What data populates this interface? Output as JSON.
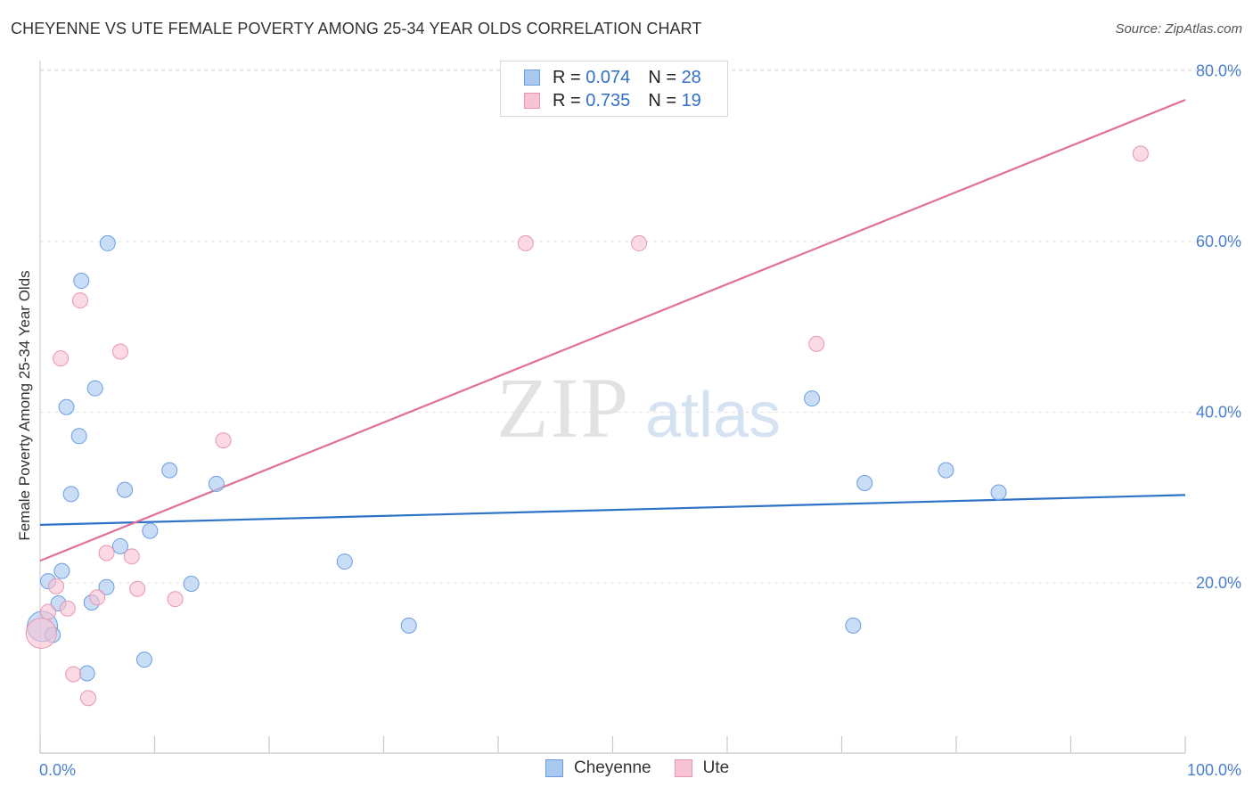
{
  "title": "CHEYENNE VS UTE FEMALE POVERTY AMONG 25-34 YEAR OLDS CORRELATION CHART",
  "source": "Source: ZipAtlas.com",
  "watermark": {
    "zip": "ZIP",
    "atlas": "atlas"
  },
  "legend": {
    "rows": [
      {
        "r_label": "R =",
        "r_value": "0.074",
        "n_label": "N =",
        "n_value": "28",
        "color": "#a9c8f0",
        "border": "#6a9ee0"
      },
      {
        "r_label": "R =",
        "r_value": "0.735",
        "n_label": "N =",
        "n_value": "19",
        "color": "#f8c4d4",
        "border": "#e896b0"
      }
    ]
  },
  "bottom_legend": [
    {
      "label": "Cheyenne",
      "color": "#a9c8f0",
      "border": "#6a9ee0"
    },
    {
      "label": "Ute",
      "color": "#f8c4d4",
      "border": "#e896b0"
    }
  ],
  "chart_data": {
    "type": "scatter",
    "title": "CHEYENNE VS UTE FEMALE POVERTY AMONG 25-34 YEAR OLDS CORRELATION CHART",
    "xlabel": "",
    "ylabel": "Female Poverty Among 25-34 Year Olds",
    "xlim": [
      0,
      100
    ],
    "ylim": [
      0,
      85
    ],
    "x_tick_labels": [
      "0.0%",
      "100.0%"
    ],
    "y_ticks": [
      20,
      40,
      60,
      80
    ],
    "y_tick_labels": [
      "20.0%",
      "40.0%",
      "60.0%",
      "80.0%"
    ],
    "grid": true,
    "legend_placement": "top-center",
    "series": [
      {
        "name": "Cheyenne",
        "color": "#a9c8f0",
        "stroke": "#6a9ee0",
        "trend_color": "#2e72c8",
        "trend": {
          "x": [
            0,
            100
          ],
          "y": [
            26.8,
            30.3
          ]
        },
        "points": [
          {
            "x": 0.2,
            "y": 14.9,
            "big": true
          },
          {
            "x": 0.7,
            "y": 20.2
          },
          {
            "x": 1.1,
            "y": 13.9
          },
          {
            "x": 1.6,
            "y": 17.6
          },
          {
            "x": 1.9,
            "y": 21.4
          },
          {
            "x": 2.3,
            "y": 40.6
          },
          {
            "x": 2.7,
            "y": 30.4
          },
          {
            "x": 3.4,
            "y": 37.2
          },
          {
            "x": 3.6,
            "y": 55.4
          },
          {
            "x": 4.1,
            "y": 9.4
          },
          {
            "x": 4.5,
            "y": 17.7
          },
          {
            "x": 4.8,
            "y": 42.8
          },
          {
            "x": 5.8,
            "y": 19.5
          },
          {
            "x": 5.9,
            "y": 59.8
          },
          {
            "x": 7.0,
            "y": 24.3
          },
          {
            "x": 7.4,
            "y": 30.9
          },
          {
            "x": 9.1,
            "y": 11.0
          },
          {
            "x": 9.6,
            "y": 26.1
          },
          {
            "x": 11.3,
            "y": 33.2
          },
          {
            "x": 13.2,
            "y": 19.9
          },
          {
            "x": 15.4,
            "y": 31.6
          },
          {
            "x": 26.6,
            "y": 22.5
          },
          {
            "x": 32.2,
            "y": 15.0
          },
          {
            "x": 67.4,
            "y": 41.6
          },
          {
            "x": 71.0,
            "y": 15.0
          },
          {
            "x": 72.0,
            "y": 31.7
          },
          {
            "x": 79.1,
            "y": 33.2
          },
          {
            "x": 83.7,
            "y": 30.6
          }
        ]
      },
      {
        "name": "Ute",
        "color": "#f8c4d4",
        "stroke": "#e896b0",
        "trend_color": "#e07095",
        "trend": {
          "x": [
            0,
            100
          ],
          "y": [
            22.6,
            76.6
          ]
        },
        "points": [
          {
            "x": 0.1,
            "y": 14.1,
            "big": true
          },
          {
            "x": 0.7,
            "y": 16.6
          },
          {
            "x": 1.4,
            "y": 19.6
          },
          {
            "x": 1.8,
            "y": 46.3
          },
          {
            "x": 2.4,
            "y": 17.0
          },
          {
            "x": 2.9,
            "y": 9.3
          },
          {
            "x": 3.5,
            "y": 53.1
          },
          {
            "x": 4.2,
            "y": 6.5
          },
          {
            "x": 5.0,
            "y": 18.3
          },
          {
            "x": 5.8,
            "y": 23.5
          },
          {
            "x": 7.0,
            "y": 47.1
          },
          {
            "x": 8.0,
            "y": 23.1
          },
          {
            "x": 8.5,
            "y": 19.3
          },
          {
            "x": 11.8,
            "y": 18.1
          },
          {
            "x": 16.0,
            "y": 36.7
          },
          {
            "x": 42.4,
            "y": 59.8
          },
          {
            "x": 52.3,
            "y": 59.8
          },
          {
            "x": 67.8,
            "y": 48.0
          },
          {
            "x": 96.1,
            "y": 70.3
          }
        ]
      }
    ]
  }
}
